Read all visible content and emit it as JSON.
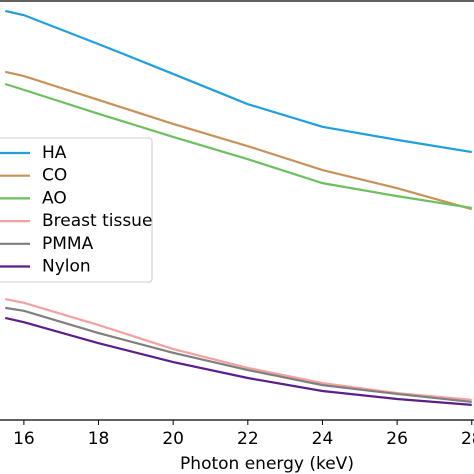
{
  "chart_data": {
    "type": "line",
    "xlabel": "Photon energy (keV)",
    "x": [
      15.5,
      16,
      18,
      20,
      22,
      24,
      26,
      28
    ],
    "xlim": [
      15.36,
      28.06
    ],
    "xticks": [
      16,
      18,
      20,
      22,
      24,
      26,
      28
    ],
    "ylim": [
      0,
      100
    ],
    "legend": "center left",
    "series": [
      {
        "name": "HA",
        "color": "#1f9fdc",
        "values": [
          97.4,
          96.4,
          89.5,
          82.4,
          75.2,
          69.8,
          66.7,
          63.8
        ]
      },
      {
        "name": "CO",
        "color": "#c8925a",
        "values": [
          82.9,
          81.9,
          76.2,
          70.5,
          65.2,
          59.5,
          55.2,
          50.2
        ]
      },
      {
        "name": "AO",
        "color": "#6dbf5f",
        "values": [
          80.0,
          78.6,
          72.9,
          67.4,
          62.1,
          56.4,
          53.3,
          50.5
        ]
      },
      {
        "name": "Breast tissue",
        "color": "#f4a0a0",
        "values": [
          28.8,
          27.9,
          22.6,
          16.9,
          12.4,
          8.8,
          6.4,
          4.8
        ]
      },
      {
        "name": "PMMA",
        "color": "#7f7f7f",
        "values": [
          26.7,
          26.0,
          20.7,
          16.0,
          11.9,
          8.3,
          6.2,
          4.3
        ]
      },
      {
        "name": "Nylon",
        "color": "#5b1e8a",
        "values": [
          24.3,
          23.3,
          18.3,
          13.8,
          10.0,
          6.9,
          5.0,
          3.6
        ]
      }
    ]
  }
}
